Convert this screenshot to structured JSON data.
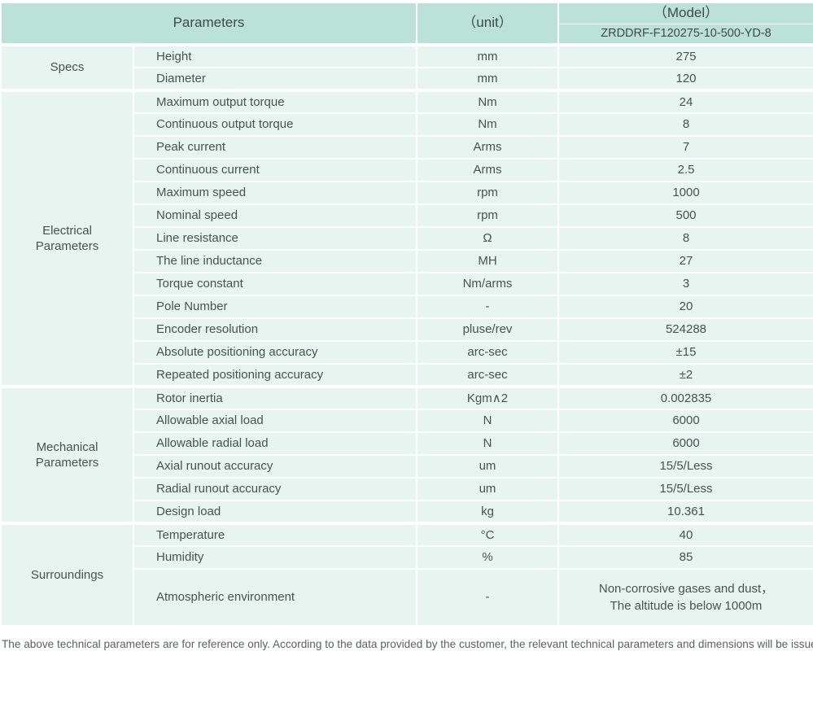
{
  "header": {
    "parameters_label": "Parameters",
    "unit_label": "（unit）",
    "model_label": "（Model）",
    "model_value": "ZRDDRF-F120275-10-500-YD-8"
  },
  "groups": [
    {
      "label": "Specs",
      "rows": [
        {
          "name": "Height",
          "unit": "mm",
          "value": "275"
        },
        {
          "name": "Diameter",
          "unit": "mm",
          "value": "120"
        }
      ]
    },
    {
      "label": "Electrical Parameters",
      "rows": [
        {
          "name": "Maximum output torque",
          "unit": "Nm",
          "value": "24"
        },
        {
          "name": "Continuous output torque",
          "unit": "Nm",
          "value": "8"
        },
        {
          "name": "Peak current",
          "unit": "Arms",
          "value": "7"
        },
        {
          "name": "Continuous current",
          "unit": "Arms",
          "value": "2.5"
        },
        {
          "name": "Maximum speed",
          "unit": "rpm",
          "value": "1000"
        },
        {
          "name": "Nominal speed",
          "unit": "rpm",
          "value": "500"
        },
        {
          "name": "Line resistance",
          "unit": "Ω",
          "value": "8"
        },
        {
          "name": "The line inductance",
          "unit": "MH",
          "value": "27"
        },
        {
          "name": "Torque constant",
          "unit": "Nm/arms",
          "value": "3"
        },
        {
          "name": "Pole Number",
          "unit": "-",
          "value": "20"
        },
        {
          "name": "Encoder resolution",
          "unit": "pluse/rev",
          "value": "524288"
        },
        {
          "name": "Absolute positioning accuracy",
          "unit": "arc-sec",
          "value": "±15"
        },
        {
          "name": "Repeated positioning accuracy",
          "unit": "arc-sec",
          "value": "±2"
        }
      ]
    },
    {
      "label": "Mechanical Parameters",
      "rows": [
        {
          "name": "Rotor inertia",
          "unit": "Kgm∧2",
          "value": "0.002835"
        },
        {
          "name": "Allowable axial load",
          "unit": "N",
          "value": "6000"
        },
        {
          "name": "Allowable radial load",
          "unit": "N",
          "value": "6000"
        },
        {
          "name": "Axial runout accuracy",
          "unit": "um",
          "value": "15/5/Less"
        },
        {
          "name": "Radial runout accuracy",
          "unit": "um",
          "value": "15/5/Less"
        },
        {
          "name": "Design load",
          "unit": "kg",
          "value": "10.361"
        }
      ]
    },
    {
      "label": "Surroundings",
      "rows": [
        {
          "name": "Temperature",
          "unit": "°C",
          "value": "40"
        },
        {
          "name": "Humidity",
          "unit": "%",
          "value": "85"
        },
        {
          "name": "Atmospheric environment",
          "unit": "-",
          "value_lines": [
            "Non-corrosive gases and dust，",
            "The altitude is below 1000m"
          ],
          "tall": true
        }
      ]
    }
  ],
  "footer": {
    "note": "The above technical parameters are for reference only. According to the data provided by the customer, the relevant technical parameters and dimensions will be issued."
  },
  "colors": {
    "header_bg": "#bce1d8",
    "cell_bg": "#e8f4f0",
    "text": "#47534f",
    "header_text": "#3d4a48",
    "muted": "#5a6260"
  }
}
